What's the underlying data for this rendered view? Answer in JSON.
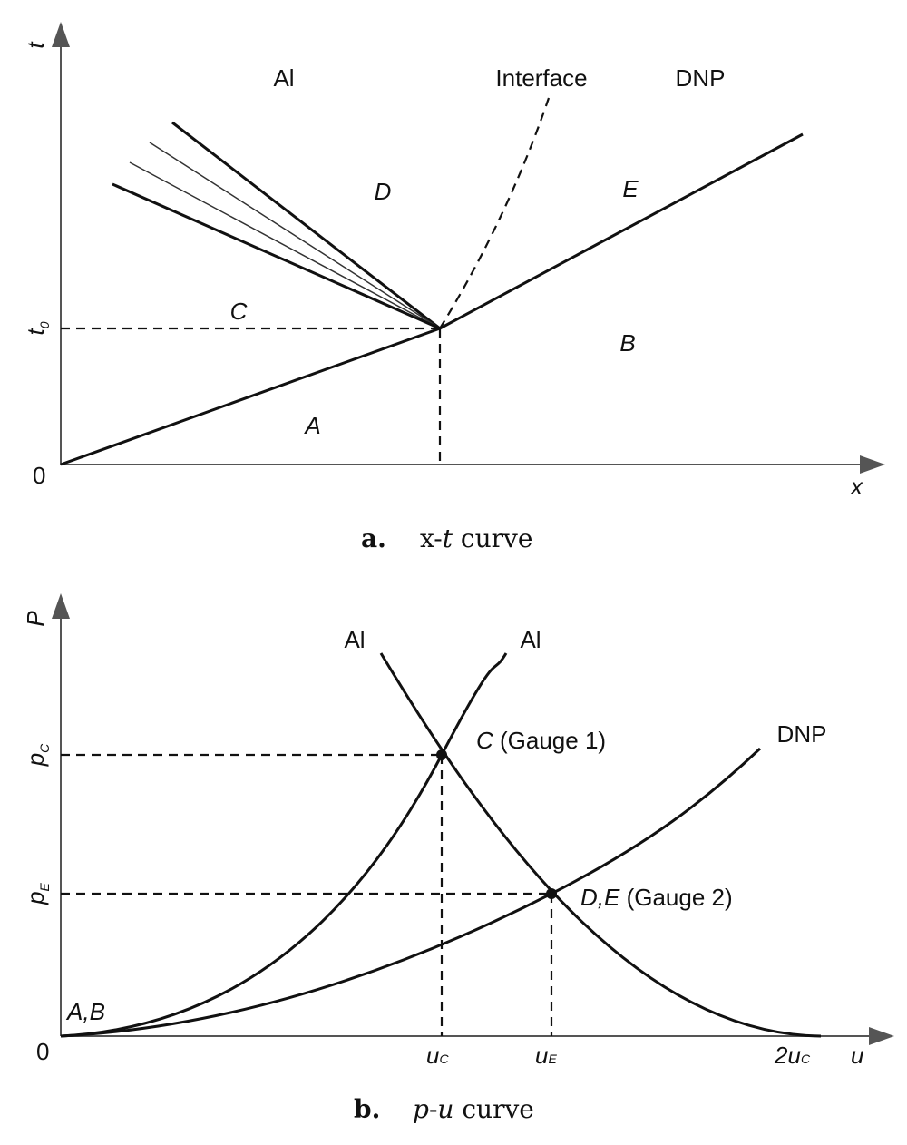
{
  "panel_a": {
    "axis_t": "t",
    "axis_x": "x",
    "origin": "0",
    "t0": {
      "main": "t",
      "sub": "0"
    },
    "regions": {
      "al": "Al",
      "interface": "Interface",
      "dnp": "DNP",
      "d": "D",
      "e": "E",
      "c": "C",
      "b": "B",
      "a": "A"
    },
    "caption": {
      "label": "a.",
      "pre": "x-",
      "italic": "t",
      "post": " curve"
    }
  },
  "panel_b": {
    "axis_p": "P",
    "axis_u": "u",
    "origin": "0",
    "pc": {
      "main": "p",
      "sub": "C"
    },
    "pe": {
      "main": "p",
      "sub": "E"
    },
    "curve_al_left": "Al",
    "curve_al_right": "Al",
    "curve_dnp": "DNP",
    "point_c": {
      "point": "C",
      "note": " (Gauge 1)"
    },
    "point_de": {
      "point": "D,E",
      "note": " (Gauge 2)"
    },
    "point_ab": "A,B",
    "uc": {
      "main": "u",
      "sub": "C"
    },
    "ue": {
      "main": "u",
      "sub": "E"
    },
    "two_uc": {
      "pre": "2",
      "main": "u",
      "sub": "C"
    },
    "caption": {
      "label": "b.",
      "italic1": "p",
      "dash": "-",
      "italic2": "u",
      "post": " curve"
    }
  }
}
